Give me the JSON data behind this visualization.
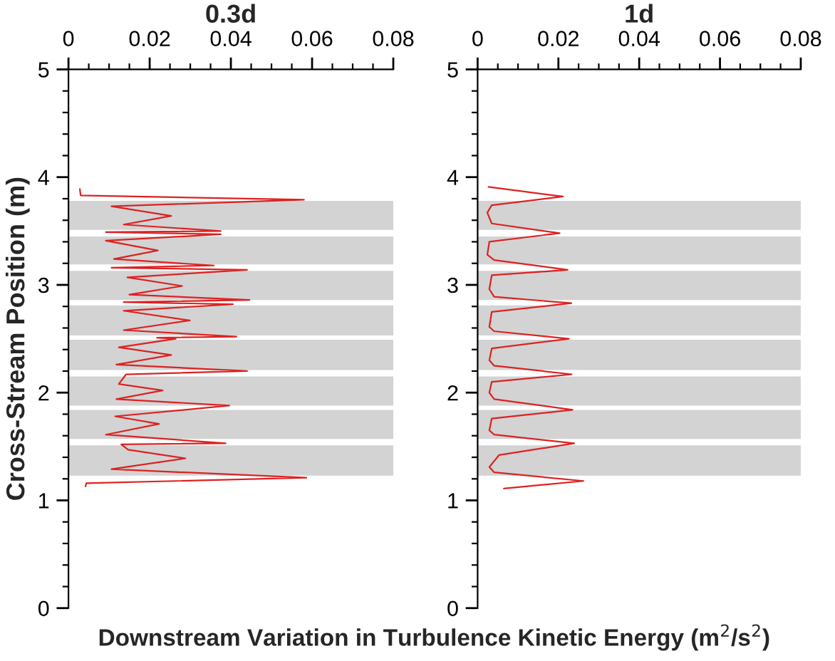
{
  "chart_data": [
    {
      "type": "line",
      "title": "0.3d",
      "xlabel": "Downstream Variation in Turbulence Kinetic Energy (m$^{2}$/s$^{2}$)",
      "ylabel": "Cross-Stream Position (m)",
      "series": [
        {
          "color": "#dd2222",
          "x": [
            0.0042,
            0.0044,
            0.0586,
            0.0106,
            0.0288,
            0.0147,
            0.013,
            0.0387,
            0.0092,
            0.0223,
            0.0115,
            0.0396,
            0.0118,
            0.0232,
            0.0124,
            0.0142,
            0.044,
            0.0118,
            0.0253,
            0.0124,
            0.0264,
            0.0218,
            0.0414,
            0.0136,
            0.0299,
            0.0136,
            0.0405,
            0.0136,
            0.0446,
            0.015,
            0.028,
            0.0145,
            0.044,
            0.0106,
            0.0358,
            0.0112,
            0.022,
            0.0092,
            0.0375,
            0.0092,
            0.0375,
            0.0136,
            0.0253,
            0.0106,
            0.058,
            0.003,
            0.0028
          ],
          "values": [
            1.13,
            1.16,
            1.21,
            1.29,
            1.39,
            1.47,
            1.52,
            1.53,
            1.61,
            1.71,
            1.78,
            1.88,
            1.94,
            2.02,
            2.08,
            2.17,
            2.2,
            2.26,
            2.35,
            2.42,
            2.5,
            2.51,
            2.52,
            2.58,
            2.67,
            2.76,
            2.82,
            2.84,
            2.86,
            2.91,
            2.99,
            3.07,
            3.14,
            3.16,
            3.18,
            3.24,
            3.32,
            3.41,
            3.47,
            3.49,
            3.5,
            3.56,
            3.64,
            3.73,
            3.79,
            3.83,
            3.89
          ]
        }
      ],
      "xlim": [
        0,
        0.08
      ],
      "ylim": [
        0,
        5
      ],
      "xticks": [
        0,
        {
          "value": 0.005,
          "label": null
        },
        {
          "value": 0.01,
          "label": null
        },
        {
          "value": 0.015,
          "label": null
        },
        0.02,
        {
          "value": 0.025,
          "label": null
        },
        {
          "value": 0.03,
          "label": null
        },
        {
          "value": 0.035,
          "label": null
        },
        0.04,
        {
          "value": 0.045,
          "label": null
        },
        {
          "value": 0.05,
          "label": null
        },
        {
          "value": 0.055,
          "label": null
        },
        0.06,
        {
          "value": 0.065,
          "label": null
        },
        {
          "value": 0.07,
          "label": null
        },
        {
          "value": 0.075,
          "label": null
        },
        0.08
      ],
      "yticks": [
        0,
        {
          "value": 0.2,
          "label": null
        },
        {
          "value": 0.4,
          "label": null
        },
        {
          "value": 0.6,
          "label": null
        },
        {
          "value": 0.8,
          "label": null
        },
        1,
        {
          "value": 1.2,
          "label": null
        },
        {
          "value": 1.4,
          "label": null
        },
        {
          "value": 1.6,
          "label": null
        },
        {
          "value": 1.8,
          "label": null
        },
        2,
        {
          "value": 2.2,
          "label": null
        },
        {
          "value": 2.4,
          "label": null
        },
        {
          "value": 2.6,
          "label": null
        },
        {
          "value": 2.8,
          "label": null
        },
        3,
        {
          "value": 3.2,
          "label": null
        },
        {
          "value": 3.4,
          "label": null
        },
        {
          "value": 3.6,
          "label": null
        },
        {
          "value": 3.8,
          "label": null
        },
        4,
        {
          "value": 4.2,
          "label": null
        },
        {
          "value": 4.4,
          "label": null
        },
        {
          "value": 4.6,
          "label": null
        },
        {
          "value": 4.8,
          "label": null
        },
        5
      ],
      "bands": [
        {
          "axis": "y",
          "from": 1.23,
          "to": 1.51,
          "color": "#d3d3d3"
        },
        {
          "axis": "y",
          "from": 1.57,
          "to": 1.84,
          "color": "#d3d3d3"
        },
        {
          "axis": "y",
          "from": 1.88,
          "to": 2.15,
          "color": "#d3d3d3"
        },
        {
          "axis": "y",
          "from": 2.21,
          "to": 2.49,
          "color": "#d3d3d3"
        },
        {
          "axis": "y",
          "from": 2.53,
          "to": 2.81,
          "color": "#d3d3d3"
        },
        {
          "axis": "y",
          "from": 2.86,
          "to": 3.13,
          "color": "#d3d3d3"
        },
        {
          "axis": "y",
          "from": 3.19,
          "to": 3.45,
          "color": "#d3d3d3"
        },
        {
          "axis": "y",
          "from": 3.51,
          "to": 3.78,
          "color": "#d3d3d3"
        }
      ],
      "grid": false,
      "legend": false,
      "marker": "none",
      "line_style": "solid"
    },
    {
      "type": "line",
      "title": "1d",
      "series": [
        {
          "color": "#dd2222",
          "x": [
            0.0065,
            0.0262,
            0.0041,
            0.0029,
            0.0053,
            0.0239,
            0.0041,
            0.0029,
            0.0035,
            0.0235,
            0.0041,
            0.0029,
            0.0035,
            0.0233,
            0.0041,
            0.0029,
            0.0035,
            0.0226,
            0.0041,
            0.0029,
            0.0035,
            0.0232,
            0.0041,
            0.0029,
            0.0035,
            0.0223,
            0.0041,
            0.0024,
            0.0029,
            0.0203,
            0.0035,
            0.0024,
            0.0035,
            0.0211,
            0.0027
          ],
          "values": [
            1.11,
            1.18,
            1.26,
            1.31,
            1.42,
            1.53,
            1.61,
            1.65,
            1.76,
            1.84,
            1.94,
            2.0,
            2.1,
            2.17,
            2.25,
            2.3,
            2.41,
            2.5,
            2.57,
            2.61,
            2.75,
            2.83,
            2.89,
            2.96,
            3.09,
            3.14,
            3.23,
            3.28,
            3.4,
            3.48,
            3.57,
            3.67,
            3.74,
            3.82,
            3.91
          ]
        }
      ],
      "xlim": [
        0,
        0.08
      ],
      "ylim": [
        0,
        5
      ],
      "xticks": [
        0,
        {
          "value": 0.005,
          "label": null
        },
        {
          "value": 0.01,
          "label": null
        },
        {
          "value": 0.015,
          "label": null
        },
        0.02,
        {
          "value": 0.025,
          "label": null
        },
        {
          "value": 0.03,
          "label": null
        },
        {
          "value": 0.035,
          "label": null
        },
        0.04,
        {
          "value": 0.045,
          "label": null
        },
        {
          "value": 0.05,
          "label": null
        },
        {
          "value": 0.055,
          "label": null
        },
        0.06,
        {
          "value": 0.065,
          "label": null
        },
        {
          "value": 0.07,
          "label": null
        },
        {
          "value": 0.075,
          "label": null
        },
        0.08
      ],
      "yticks": [
        0,
        {
          "value": 0.2,
          "label": null
        },
        {
          "value": 0.4,
          "label": null
        },
        {
          "value": 0.6,
          "label": null
        },
        {
          "value": 0.8,
          "label": null
        },
        1,
        {
          "value": 1.2,
          "label": null
        },
        {
          "value": 1.4,
          "label": null
        },
        {
          "value": 1.6,
          "label": null
        },
        {
          "value": 1.8,
          "label": null
        },
        2,
        {
          "value": 2.2,
          "label": null
        },
        {
          "value": 2.4,
          "label": null
        },
        {
          "value": 2.6,
          "label": null
        },
        {
          "value": 2.8,
          "label": null
        },
        3,
        {
          "value": 3.2,
          "label": null
        },
        {
          "value": 3.4,
          "label": null
        },
        {
          "value": 3.6,
          "label": null
        },
        {
          "value": 3.8,
          "label": null
        },
        4,
        {
          "value": 4.2,
          "label": null
        },
        {
          "value": 4.4,
          "label": null
        },
        {
          "value": 4.6,
          "label": null
        },
        {
          "value": 4.8,
          "label": null
        },
        5
      ],
      "bands": [
        {
          "axis": "y",
          "from": 1.23,
          "to": 1.51,
          "color": "#d3d3d3"
        },
        {
          "axis": "y",
          "from": 1.57,
          "to": 1.84,
          "color": "#d3d3d3"
        },
        {
          "axis": "y",
          "from": 1.88,
          "to": 2.15,
          "color": "#d3d3d3"
        },
        {
          "axis": "y",
          "from": 2.21,
          "to": 2.49,
          "color": "#d3d3d3"
        },
        {
          "axis": "y",
          "from": 2.53,
          "to": 2.81,
          "color": "#d3d3d3"
        },
        {
          "axis": "y",
          "from": 2.86,
          "to": 3.13,
          "color": "#d3d3d3"
        },
        {
          "axis": "y",
          "from": 3.19,
          "to": 3.45,
          "color": "#d3d3d3"
        },
        {
          "axis": "y",
          "from": 3.51,
          "to": 3.78,
          "color": "#d3d3d3"
        }
      ],
      "grid": false,
      "legend": false,
      "marker": "none",
      "line_style": "solid"
    }
  ]
}
